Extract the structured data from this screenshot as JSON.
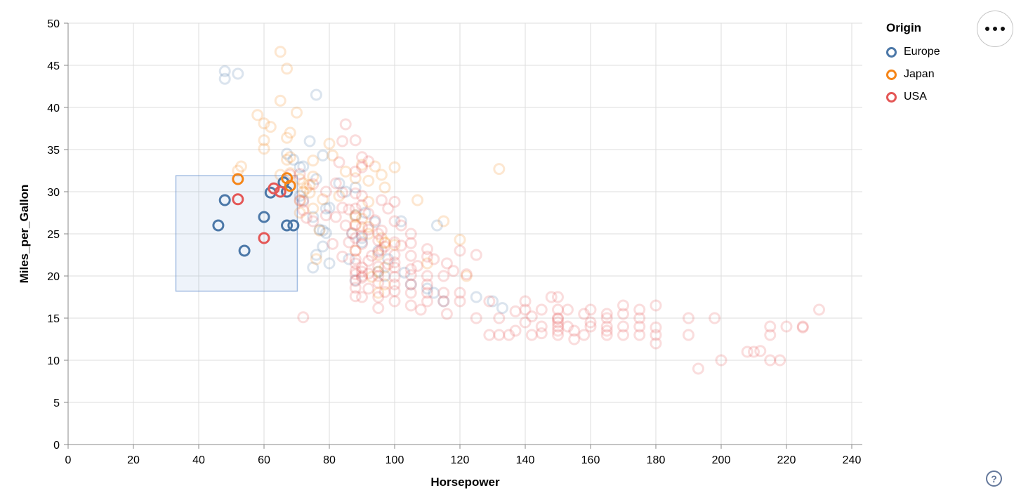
{
  "app": {
    "background": "#ffffff"
  },
  "legend": {
    "title": "Origin",
    "items": [
      {
        "label": "Europe",
        "color": "#4c78a8"
      },
      {
        "label": "Japan",
        "color": "#f58518"
      },
      {
        "label": "USA",
        "color": "#e45756"
      }
    ]
  },
  "controls": {
    "menu_icon": "ellipsis",
    "help_label": "?"
  },
  "style": {
    "grid_color": "#dddddd",
    "axis_color": "#888888",
    "label_color": "#000000",
    "brush_fill": "rgba(92,138,204,0.10)",
    "brush_stroke": "rgba(92,138,204,0.55)",
    "unselected_opacity": 0.2,
    "selected_opacity": 1
  },
  "chart_data": {
    "type": "scatter",
    "xlabel": "Horsepower",
    "ylabel": "Miles_per_Gallon",
    "xlim": [
      0,
      243
    ],
    "ylim": [
      0,
      50
    ],
    "xticks": [
      0,
      20,
      40,
      60,
      80,
      100,
      120,
      140,
      160,
      180,
      200,
      220,
      240
    ],
    "yticks": [
      0,
      5,
      10,
      15,
      20,
      25,
      30,
      35,
      40,
      45,
      50
    ],
    "grid": true,
    "legend_position": "top-right",
    "origin_colors": {
      "Europe": "#4c78a8",
      "Japan": "#f58518",
      "USA": "#e45756"
    },
    "origin_codes": {
      "E": "Europe",
      "J": "Japan",
      "U": "USA"
    },
    "brush_selection": {
      "hp": [
        33,
        70.2
      ],
      "mpg": [
        18.2,
        31.9
      ]
    },
    "selected_points": [
      [
        46,
        26.0,
        "E"
      ],
      [
        48,
        29.0,
        "E"
      ],
      [
        54,
        23.0,
        "E"
      ],
      [
        60,
        27.0,
        "E"
      ],
      [
        62,
        29.9,
        "E"
      ],
      [
        66,
        31.1,
        "E"
      ],
      [
        67,
        30.0,
        "E"
      ],
      [
        67,
        26.0,
        "E"
      ],
      [
        69,
        26.0,
        "E"
      ],
      [
        52,
        31.5,
        "J"
      ],
      [
        67,
        31.6,
        "J"
      ],
      [
        68,
        30.7,
        "J"
      ],
      [
        52,
        29.1,
        "U"
      ],
      [
        60,
        24.5,
        "U"
      ],
      [
        63,
        30.4,
        "U"
      ],
      [
        65,
        30.0,
        "U"
      ]
    ],
    "points": [
      [
        48,
        44.3,
        "E"
      ],
      [
        52,
        44.0,
        "E"
      ],
      [
        48,
        43.4,
        "E"
      ],
      [
        76,
        41.5,
        "E"
      ],
      [
        74,
        36.0,
        "E"
      ],
      [
        78,
        34.3,
        "E"
      ],
      [
        69,
        33.8,
        "E"
      ],
      [
        71,
        32.9,
        "E"
      ],
      [
        76,
        31.5,
        "E"
      ],
      [
        88,
        30.5,
        "E"
      ],
      [
        71,
        29.5,
        "E"
      ],
      [
        72,
        29.0,
        "E"
      ],
      [
        80,
        28.1,
        "E"
      ],
      [
        79,
        28.0,
        "E"
      ],
      [
        88,
        27.2,
        "E"
      ],
      [
        75,
        27.0,
        "E"
      ],
      [
        102,
        26.5,
        "E"
      ],
      [
        113,
        26.0,
        "E"
      ],
      [
        79,
        25.1,
        "E"
      ],
      [
        77,
        25.5,
        "E"
      ],
      [
        78,
        25.4,
        "E"
      ],
      [
        87,
        25.0,
        "E"
      ],
      [
        90,
        24.5,
        "E"
      ],
      [
        90,
        24.0,
        "E"
      ],
      [
        78,
        23.5,
        "E"
      ],
      [
        95,
        23.0,
        "E"
      ],
      [
        76,
        22.5,
        "E"
      ],
      [
        86,
        22.0,
        "E"
      ],
      [
        80,
        21.5,
        "E"
      ],
      [
        75,
        21.0,
        "E"
      ],
      [
        95,
        20.5,
        "E"
      ],
      [
        97,
        20.0,
        "E"
      ],
      [
        88,
        19.5,
        "E"
      ],
      [
        105,
        19.0,
        "E"
      ],
      [
        110,
        18.5,
        "E"
      ],
      [
        112,
        18.0,
        "E"
      ],
      [
        125,
        17.5,
        "E"
      ],
      [
        130,
        17.0,
        "E"
      ],
      [
        133,
        16.2,
        "E"
      ],
      [
        115,
        17.0,
        "E"
      ],
      [
        85,
        30.0,
        "E"
      ],
      [
        83,
        31.0,
        "E"
      ],
      [
        67,
        34.5,
        "E"
      ],
      [
        72,
        33.0,
        "E"
      ],
      [
        91,
        27.5,
        "E"
      ],
      [
        94,
        26.4,
        "E"
      ],
      [
        98,
        22.0,
        "E"
      ],
      [
        103,
        20.4,
        "E"
      ],
      [
        65,
        46.6,
        "J"
      ],
      [
        67,
        44.6,
        "J"
      ],
      [
        65,
        40.8,
        "J"
      ],
      [
        70,
        39.4,
        "J"
      ],
      [
        58,
        39.1,
        "J"
      ],
      [
        60,
        38.1,
        "J"
      ],
      [
        62,
        37.7,
        "J"
      ],
      [
        68,
        37.0,
        "J"
      ],
      [
        60,
        36.1,
        "J"
      ],
      [
        80,
        35.7,
        "J"
      ],
      [
        60,
        35.1,
        "J"
      ],
      [
        68,
        34.1,
        "J"
      ],
      [
        67,
        33.8,
        "J"
      ],
      [
        75,
        33.7,
        "J"
      ],
      [
        100,
        32.9,
        "J"
      ],
      [
        132,
        32.7,
        "J"
      ],
      [
        96,
        32.0,
        "J"
      ],
      [
        75,
        31.8,
        "J"
      ],
      [
        71,
        31.5,
        "J"
      ],
      [
        72,
        31.0,
        "J"
      ],
      [
        53,
        33.0,
        "J"
      ],
      [
        52,
        32.5,
        "J"
      ],
      [
        73,
        30.4,
        "J"
      ],
      [
        72,
        30.0,
        "J"
      ],
      [
        83,
        29.5,
        "J"
      ],
      [
        71,
        28.9,
        "J"
      ],
      [
        92,
        28.8,
        "J"
      ],
      [
        75,
        28.0,
        "J"
      ],
      [
        71,
        27.5,
        "J"
      ],
      [
        88,
        27.2,
        "J"
      ],
      [
        88,
        27.0,
        "J"
      ],
      [
        90,
        26.8,
        "J"
      ],
      [
        88,
        26.0,
        "J"
      ],
      [
        92,
        25.8,
        "J"
      ],
      [
        77,
        25.4,
        "J"
      ],
      [
        92,
        25.0,
        "J"
      ],
      [
        96,
        24.5,
        "J"
      ],
      [
        120,
        24.3,
        "J"
      ],
      [
        97,
        24.0,
        "J"
      ],
      [
        97,
        23.9,
        "J"
      ],
      [
        100,
        23.7,
        "J"
      ],
      [
        88,
        23.0,
        "J"
      ],
      [
        95,
        22.5,
        "J"
      ],
      [
        76,
        22.0,
        "J"
      ],
      [
        110,
        21.5,
        "J"
      ],
      [
        97,
        21.0,
        "J"
      ],
      [
        95,
        20.5,
        "J"
      ],
      [
        122,
        20.0,
        "J"
      ],
      [
        93,
        19.9,
        "J"
      ],
      [
        97,
        19.0,
        "J"
      ],
      [
        95,
        18.0,
        "J"
      ],
      [
        67,
        36.4,
        "J"
      ],
      [
        68,
        32.2,
        "J"
      ],
      [
        65,
        32.0,
        "J"
      ],
      [
        74,
        30.8,
        "J"
      ],
      [
        74,
        29.9,
        "J"
      ],
      [
        78,
        29.1,
        "J"
      ],
      [
        88,
        31.6,
        "J"
      ],
      [
        85,
        32.4,
        "J"
      ],
      [
        92,
        31.3,
        "J"
      ],
      [
        97,
        30.5,
        "J"
      ],
      [
        90,
        33.2,
        "J"
      ],
      [
        94,
        33.0,
        "J"
      ],
      [
        107,
        29.0,
        "J"
      ],
      [
        115,
        26.5,
        "J"
      ],
      [
        81,
        34.3,
        "J"
      ],
      [
        85,
        38.0,
        "U"
      ],
      [
        84,
        36.0,
        "U"
      ],
      [
        88,
        36.1,
        "U"
      ],
      [
        90,
        34.1,
        "U"
      ],
      [
        92,
        33.6,
        "U"
      ],
      [
        83,
        33.5,
        "U"
      ],
      [
        90,
        32.9,
        "U"
      ],
      [
        88,
        32.4,
        "U"
      ],
      [
        71,
        32.1,
        "U"
      ],
      [
        82,
        31.0,
        "U"
      ],
      [
        75,
        30.9,
        "U"
      ],
      [
        68,
        32.0,
        "U"
      ],
      [
        79,
        30.0,
        "U"
      ],
      [
        88,
        29.8,
        "U"
      ],
      [
        90,
        29.5,
        "U"
      ],
      [
        71,
        29.0,
        "U"
      ],
      [
        72,
        28.8,
        "U"
      ],
      [
        90,
        28.4,
        "U"
      ],
      [
        84,
        28.1,
        "U"
      ],
      [
        88,
        28.0,
        "U"
      ],
      [
        86,
        27.9,
        "U"
      ],
      [
        92,
        27.4,
        "U"
      ],
      [
        79,
        27.2,
        "U"
      ],
      [
        82,
        27.0,
        "U"
      ],
      [
        94,
        26.6,
        "U"
      ],
      [
        100,
        26.5,
        "U"
      ],
      [
        88,
        26.1,
        "U"
      ],
      [
        85,
        26.0,
        "U"
      ],
      [
        90,
        25.8,
        "U"
      ],
      [
        92,
        25.5,
        "U"
      ],
      [
        96,
        25.4,
        "U"
      ],
      [
        87,
        25.1,
        "U"
      ],
      [
        95,
        25.0,
        "U"
      ],
      [
        98,
        28.0,
        "U"
      ],
      [
        102,
        26.0,
        "U"
      ],
      [
        105,
        25.0,
        "U"
      ],
      [
        72,
        27.8,
        "U"
      ],
      [
        73,
        26.9,
        "U"
      ],
      [
        75,
        26.5,
        "U"
      ],
      [
        100,
        28.8,
        "U"
      ],
      [
        96,
        29.0,
        "U"
      ],
      [
        84,
        29.9,
        "U"
      ],
      [
        90,
        24.8,
        "U"
      ],
      [
        88,
        24.5,
        "U"
      ],
      [
        95,
        24.2,
        "U"
      ],
      [
        100,
        24.0,
        "U"
      ],
      [
        105,
        23.9,
        "U"
      ],
      [
        90,
        23.8,
        "U"
      ],
      [
        97,
        23.5,
        "U"
      ],
      [
        110,
        23.2,
        "U"
      ],
      [
        88,
        23.0,
        "U"
      ],
      [
        95,
        22.8,
        "U"
      ],
      [
        100,
        22.5,
        "U"
      ],
      [
        105,
        22.4,
        "U"
      ],
      [
        110,
        22.3,
        "U"
      ],
      [
        88,
        22.0,
        "U"
      ],
      [
        92,
        21.8,
        "U"
      ],
      [
        100,
        21.6,
        "U"
      ],
      [
        116,
        21.5,
        "U"
      ],
      [
        90,
        21.0,
        "U"
      ],
      [
        95,
        21.1,
        "U"
      ],
      [
        100,
        21.0,
        "U"
      ],
      [
        105,
        20.8,
        "U"
      ],
      [
        88,
        20.6,
        "U"
      ],
      [
        90,
        20.5,
        "U"
      ],
      [
        92,
        20.3,
        "U"
      ],
      [
        88,
        20.2,
        "U"
      ],
      [
        90,
        20.0,
        "U"
      ],
      [
        95,
        20.0,
        "U"
      ],
      [
        100,
        19.9,
        "U"
      ],
      [
        105,
        20.1,
        "U"
      ],
      [
        110,
        20.0,
        "U"
      ],
      [
        115,
        20.0,
        "U"
      ],
      [
        84,
        22.3,
        "U"
      ],
      [
        86,
        24.0,
        "U"
      ],
      [
        81,
        23.8,
        "U"
      ],
      [
        107,
        21.2,
        "U"
      ],
      [
        118,
        20.6,
        "U"
      ],
      [
        122,
        20.2,
        "U"
      ],
      [
        96,
        23.1,
        "U"
      ],
      [
        93,
        22.4,
        "U"
      ],
      [
        98,
        21.4,
        "U"
      ],
      [
        102,
        23.6,
        "U"
      ],
      [
        120,
        23.0,
        "U"
      ],
      [
        125,
        22.5,
        "U"
      ],
      [
        112,
        22.0,
        "U"
      ],
      [
        88,
        21.5,
        "U"
      ],
      [
        90,
        19.8,
        "U"
      ],
      [
        88,
        19.4,
        "U"
      ],
      [
        95,
        19.2,
        "U"
      ],
      [
        100,
        19.0,
        "U"
      ],
      [
        105,
        19.0,
        "U"
      ],
      [
        110,
        19.0,
        "U"
      ],
      [
        88,
        18.6,
        "U"
      ],
      [
        92,
        18.5,
        "U"
      ],
      [
        100,
        18.2,
        "U"
      ],
      [
        105,
        18.0,
        "U"
      ],
      [
        110,
        18.0,
        "U"
      ],
      [
        115,
        18.0,
        "U"
      ],
      [
        120,
        18.0,
        "U"
      ],
      [
        97,
        18.1,
        "U"
      ],
      [
        88,
        17.6,
        "U"
      ],
      [
        90,
        17.5,
        "U"
      ],
      [
        95,
        17.5,
        "U"
      ],
      [
        100,
        17.0,
        "U"
      ],
      [
        110,
        17.0,
        "U"
      ],
      [
        115,
        17.0,
        "U"
      ],
      [
        120,
        17.0,
        "U"
      ],
      [
        129,
        17.0,
        "U"
      ],
      [
        105,
        16.5,
        "U"
      ],
      [
        140,
        17.0,
        "U"
      ],
      [
        148,
        17.5,
        "U"
      ],
      [
        150,
        17.5,
        "U"
      ],
      [
        140,
        16.0,
        "U"
      ],
      [
        150,
        16.0,
        "U"
      ],
      [
        145,
        16.0,
        "U"
      ],
      [
        137,
        15.8,
        "U"
      ],
      [
        158,
        15.5,
        "U"
      ],
      [
        142,
        15.2,
        "U"
      ],
      [
        132,
        15.0,
        "U"
      ],
      [
        125,
        15.0,
        "U"
      ],
      [
        116,
        15.5,
        "U"
      ],
      [
        150,
        15.0,
        "U"
      ],
      [
        165,
        15.5,
        "U"
      ],
      [
        170,
        16.5,
        "U"
      ],
      [
        180,
        16.5,
        "U"
      ],
      [
        175,
        16.0,
        "U"
      ],
      [
        160,
        16.0,
        "U"
      ],
      [
        153,
        16.0,
        "U"
      ],
      [
        170,
        15.5,
        "U"
      ],
      [
        165,
        15.0,
        "U"
      ],
      [
        175,
        15.0,
        "U"
      ],
      [
        190,
        15.0,
        "U"
      ],
      [
        198,
        15.0,
        "U"
      ],
      [
        95,
        16.2,
        "U"
      ],
      [
        108,
        16.0,
        "U"
      ],
      [
        72,
        15.1,
        "U"
      ],
      [
        150,
        14.9,
        "U"
      ],
      [
        140,
        14.5,
        "U"
      ],
      [
        150,
        14.5,
        "U"
      ],
      [
        160,
        14.5,
        "U"
      ],
      [
        145,
        14.0,
        "U"
      ],
      [
        150,
        14.0,
        "U"
      ],
      [
        153,
        14.0,
        "U"
      ],
      [
        160,
        14.0,
        "U"
      ],
      [
        165,
        14.0,
        "U"
      ],
      [
        170,
        14.0,
        "U"
      ],
      [
        175,
        14.0,
        "U"
      ],
      [
        180,
        13.9,
        "U"
      ],
      [
        150,
        13.5,
        "U"
      ],
      [
        155,
        13.5,
        "U"
      ],
      [
        165,
        13.5,
        "U"
      ],
      [
        145,
        13.2,
        "U"
      ],
      [
        150,
        13.0,
        "U"
      ],
      [
        158,
        13.0,
        "U"
      ],
      [
        165,
        13.0,
        "U"
      ],
      [
        170,
        13.0,
        "U"
      ],
      [
        175,
        13.0,
        "U"
      ],
      [
        180,
        13.0,
        "U"
      ],
      [
        190,
        13.0,
        "U"
      ],
      [
        129,
        13.0,
        "U"
      ],
      [
        137,
        13.5,
        "U"
      ],
      [
        132,
        13.0,
        "U"
      ],
      [
        135,
        13.0,
        "U"
      ],
      [
        142,
        13.0,
        "U"
      ],
      [
        155,
        12.5,
        "U"
      ],
      [
        180,
        12.0,
        "U"
      ],
      [
        215,
        14.0,
        "U"
      ],
      [
        220,
        14.0,
        "U"
      ],
      [
        225,
        14.0,
        "U"
      ],
      [
        225,
        13.9,
        "U"
      ],
      [
        215,
        13.0,
        "U"
      ],
      [
        230,
        16.0,
        "U"
      ],
      [
        208,
        11.0,
        "U"
      ],
      [
        210,
        11.0,
        "U"
      ],
      [
        200,
        10.0,
        "U"
      ],
      [
        215,
        10.0,
        "U"
      ],
      [
        193,
        9.0,
        "U"
      ],
      [
        212,
        11.1,
        "U"
      ],
      [
        218,
        10.0,
        "U"
      ]
    ]
  }
}
